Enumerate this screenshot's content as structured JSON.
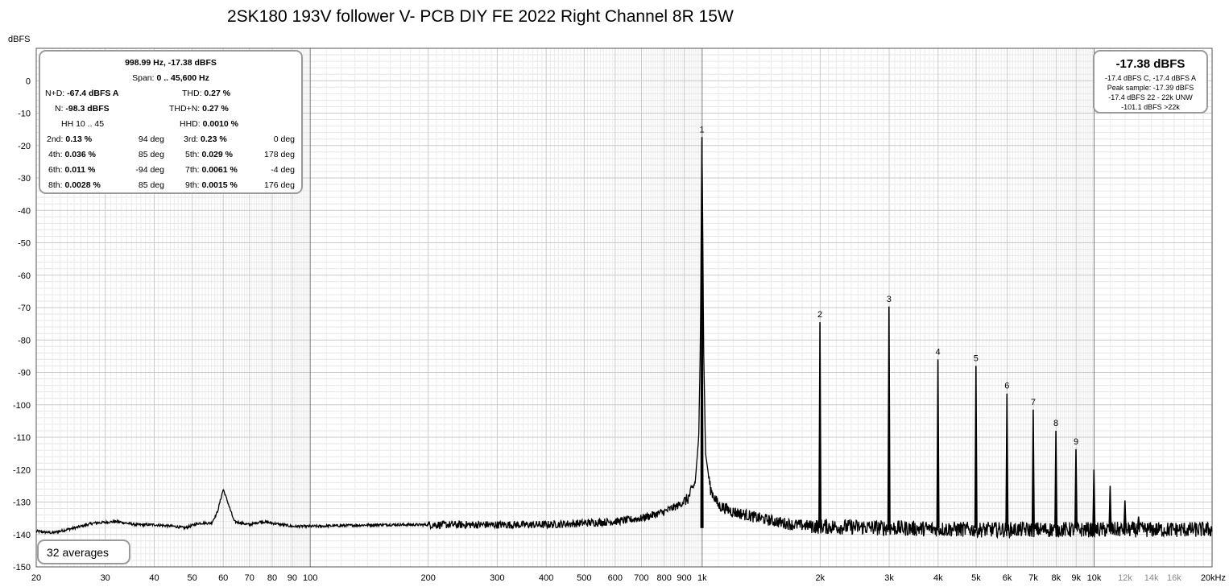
{
  "title": "2SK180 193V follower V- PCB DIY FE 2022 Right Channel 8R 15W",
  "stats": {
    "header": "998.99 Hz, -17.38 dBFS",
    "span_label": "Span:",
    "span_value": "0 .. 45,600 Hz",
    "nd_label": "N+D:",
    "nd_value": "-67.4 dBFS A",
    "thd_label": "THD:",
    "thd_value": "0.27 %",
    "n_label": "N:",
    "n_value": "-98.3 dBFS",
    "thdn_label": "THD+N:",
    "thdn_value": "0.27 %",
    "hh_label": "HH 10 .. 45",
    "hhd_label": "HHD:",
    "hhd_value": "0.0010 %",
    "harmonics": [
      {
        "label": "2nd:",
        "value": "0.13 %",
        "phase": "94 deg"
      },
      {
        "label": "3rd:",
        "value": "0.23 %",
        "phase": "0 deg"
      },
      {
        "label": "4th:",
        "value": "0.036 %",
        "phase": "85 deg"
      },
      {
        "label": "5th:",
        "value": "0.029 %",
        "phase": "178 deg"
      },
      {
        "label": "6th:",
        "value": "0.011 %",
        "phase": "-94 deg"
      },
      {
        "label": "7th:",
        "value": "0.0061 %",
        "phase": "-4 deg"
      },
      {
        "label": "8th:",
        "value": "0.0028 %",
        "phase": "85 deg"
      },
      {
        "label": "9th:",
        "value": "0.0015 %",
        "phase": "176 deg"
      }
    ]
  },
  "level": {
    "main": "-17.38 dBFS",
    "line1": "-17.4 dBFS C, -17.4 dBFS A",
    "line2": "Peak sample: -17.39 dBFS",
    "line3": "-17.4 dBFS 22 - 22k UNW",
    "line4": "-101.1 dBFS >22k"
  },
  "averages_label": "32 averages",
  "chart_data": {
    "type": "line",
    "title": "2SK180 193V follower V- PCB DIY FE 2022 Right Channel 8R 15W",
    "ylabel": "dBFS",
    "xlabel": "",
    "x_scale": "log",
    "xlim": [
      20,
      20000
    ],
    "ylim": [
      -150,
      10
    ],
    "grid": true,
    "y_ticks": [
      0,
      -10,
      -20,
      -30,
      -40,
      -50,
      -60,
      -70,
      -80,
      -90,
      -100,
      -110,
      -120,
      -130,
      -140,
      -150
    ],
    "x_ticks": [
      {
        "v": 20,
        "t": "20"
      },
      {
        "v": 30,
        "t": "30"
      },
      {
        "v": 40,
        "t": "40"
      },
      {
        "v": 50,
        "t": "50"
      },
      {
        "v": 60,
        "t": "60"
      },
      {
        "v": 70,
        "t": "70"
      },
      {
        "v": 80,
        "t": "80"
      },
      {
        "v": 90,
        "t": "90"
      },
      {
        "v": 100,
        "t": "100"
      },
      {
        "v": 200,
        "t": "200"
      },
      {
        "v": 300,
        "t": "300"
      },
      {
        "v": 400,
        "t": "400"
      },
      {
        "v": 500,
        "t": "500"
      },
      {
        "v": 600,
        "t": "600"
      },
      {
        "v": 700,
        "t": "700"
      },
      {
        "v": 800,
        "t": "800"
      },
      {
        "v": 900,
        "t": "900"
      },
      {
        "v": 1000,
        "t": "1k"
      },
      {
        "v": 2000,
        "t": "2k"
      },
      {
        "v": 3000,
        "t": "3k"
      },
      {
        "v": 4000,
        "t": "4k"
      },
      {
        "v": 5000,
        "t": "5k"
      },
      {
        "v": 6000,
        "t": "6k"
      },
      {
        "v": 7000,
        "t": "7k"
      },
      {
        "v": 8000,
        "t": "8k"
      },
      {
        "v": 9000,
        "t": "9k"
      },
      {
        "v": 10000,
        "t": "10k"
      },
      {
        "v": 12000,
        "t": "12k",
        "gray": true
      },
      {
        "v": 14000,
        "t": "14k",
        "gray": true
      },
      {
        "v": 16000,
        "t": "16k",
        "gray": true
      },
      {
        "v": 20000,
        "t": "20kHz"
      }
    ],
    "harmonic_peaks": [
      {
        "n": "1",
        "f": 999,
        "db": -17.4
      },
      {
        "n": "2",
        "f": 1998,
        "db": -74.5
      },
      {
        "n": "3",
        "f": 2997,
        "db": -69.7
      },
      {
        "n": "4",
        "f": 3996,
        "db": -86.0
      },
      {
        "n": "5",
        "f": 4995,
        "db": -88.0
      },
      {
        "n": "6",
        "f": 5994,
        "db": -96.5
      },
      {
        "n": "7",
        "f": 6993,
        "db": -101.5
      },
      {
        "n": "8",
        "f": 7992,
        "db": -108.0
      },
      {
        "n": "9",
        "f": 8991,
        "db": -113.7
      }
    ],
    "unlabeled_peaks": [
      {
        "f": 9990,
        "db": -120.0
      },
      {
        "f": 10989,
        "db": -125.0
      },
      {
        "f": 11988,
        "db": -129.5
      },
      {
        "f": 12987,
        "db": -134.5
      }
    ],
    "noise_floor": [
      [
        20,
        -139
      ],
      [
        22,
        -139.5
      ],
      [
        25,
        -138
      ],
      [
        28,
        -136.5
      ],
      [
        32,
        -136
      ],
      [
        36,
        -137
      ],
      [
        40,
        -137
      ],
      [
        45,
        -137.5
      ],
      [
        48,
        -138
      ],
      [
        52,
        -136.5
      ],
      [
        56,
        -136.5
      ],
      [
        58,
        -133
      ],
      [
        60,
        -126
      ],
      [
        62,
        -131
      ],
      [
        64,
        -136
      ],
      [
        70,
        -137
      ],
      [
        75,
        -136
      ],
      [
        80,
        -136.5
      ],
      [
        85,
        -137
      ],
      [
        90,
        -137.5
      ],
      [
        95,
        -137.5
      ],
      [
        100,
        -137.5
      ],
      [
        150,
        -137
      ],
      [
        200,
        -137
      ],
      [
        300,
        -137
      ],
      [
        400,
        -137
      ],
      [
        500,
        -136.5
      ],
      [
        600,
        -136
      ],
      [
        700,
        -135
      ],
      [
        800,
        -133
      ],
      [
        870,
        -131
      ],
      [
        920,
        -129
      ],
      [
        960,
        -124
      ],
      [
        980,
        -110
      ],
      [
        990,
        -80
      ],
      [
        995,
        -40
      ],
      [
        999,
        -17.4
      ],
      [
        1003,
        -40
      ],
      [
        1008,
        -80
      ],
      [
        1020,
        -115
      ],
      [
        1050,
        -126
      ],
      [
        1100,
        -131
      ],
      [
        1200,
        -133
      ],
      [
        1400,
        -135
      ],
      [
        1700,
        -137
      ],
      [
        2000,
        -137.5
      ],
      [
        3000,
        -138
      ],
      [
        5000,
        -138.5
      ],
      [
        10000,
        -138.5
      ],
      [
        20000,
        -138.5
      ]
    ]
  }
}
